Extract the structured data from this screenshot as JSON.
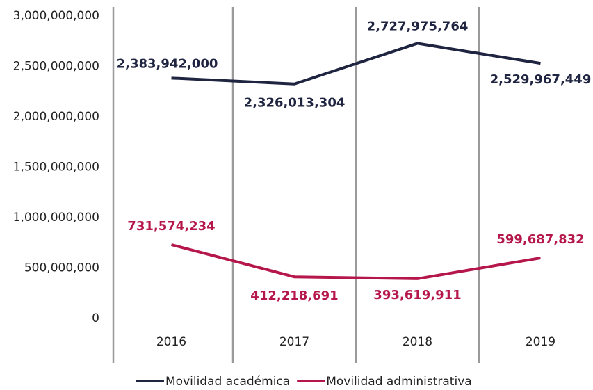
{
  "chart_data": {
    "type": "line",
    "categories": [
      "2016",
      "2017",
      "2018",
      "2019"
    ],
    "series": [
      {
        "name": "Movilidad académica",
        "color": "#1f2440",
        "values": [
          2383942000,
          2326013304,
          2727975764,
          2529967449
        ],
        "value_labels": [
          "2,383,942,000",
          "2,326,013,304",
          "2,727,975,764",
          "2,529,967,449"
        ]
      },
      {
        "name": "Movilidad administrativa",
        "color": "#b5174b",
        "values": [
          731574234,
          412218691,
          393619911,
          599687832
        ],
        "value_labels": [
          "731,574,234",
          "412,218,691",
          "393,619,911",
          "599,687,832"
        ]
      }
    ],
    "ylim": [
      0,
      3000000000
    ],
    "yticks": [
      {
        "value": 0,
        "label": "0"
      },
      {
        "value": 500000000,
        "label": "500,000,000"
      },
      {
        "value": 1000000000,
        "label": "1,000,000,000"
      },
      {
        "value": 1500000000,
        "label": "1,500,000,000"
      },
      {
        "value": 2000000000,
        "label": "2,000,000,000"
      },
      {
        "value": 2500000000,
        "label": "2,500,000,000"
      },
      {
        "value": 3000000000,
        "label": "3,000,000,000"
      }
    ],
    "legend": "bottom"
  }
}
